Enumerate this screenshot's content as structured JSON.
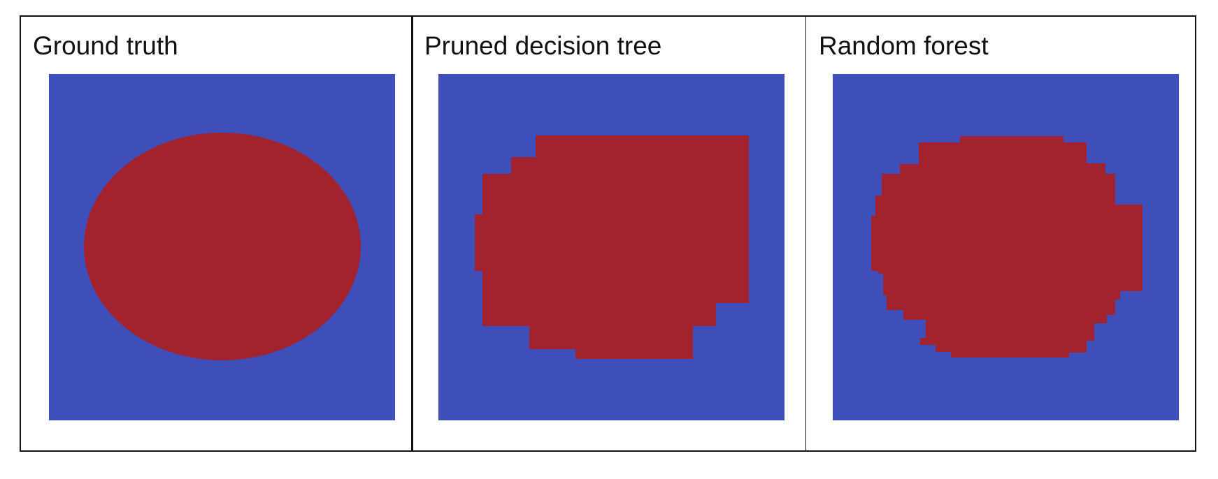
{
  "colors": {
    "background_class": "#3f4fba",
    "positive_class": "#a2222e",
    "border": "#111111"
  },
  "panels": [
    {
      "title": "Ground truth"
    },
    {
      "title": "Pruned decision tree"
    },
    {
      "title": "Random forest"
    }
  ]
}
